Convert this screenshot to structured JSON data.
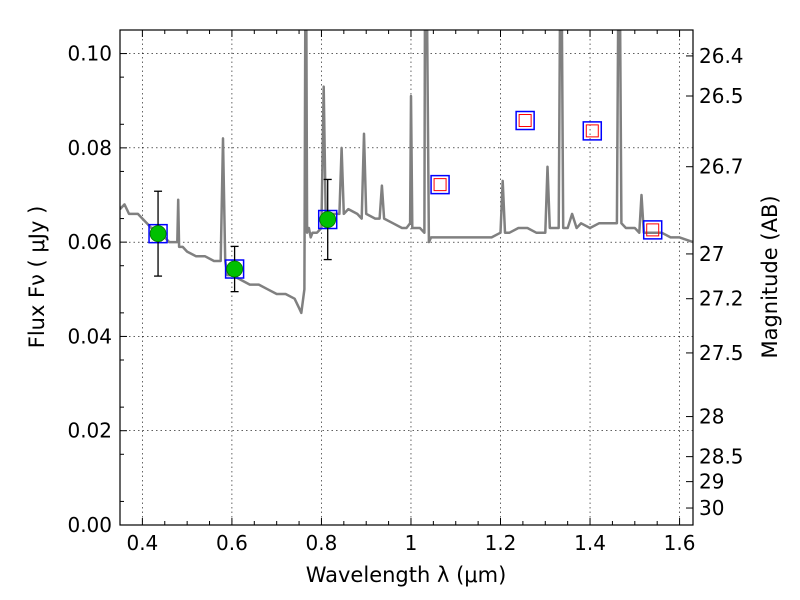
{
  "chart_data": {
    "type": "line",
    "title": "",
    "xlabel": "Wavelength  λ (μm)",
    "ylabel": "Flux  Fν  ( μJy )",
    "ylabel_right": "Magnitude (AB)",
    "xlim": [
      0.35,
      1.63
    ],
    "ylim": [
      0.0,
      0.105
    ],
    "grid": true,
    "x_ticks": [
      0.4,
      0.6,
      0.8,
      1.0,
      1.2,
      1.4,
      1.6
    ],
    "x_tick_labels": [
      "0.4",
      "0.6",
      "0.8",
      "1",
      "1.2",
      "1.4",
      "1.6"
    ],
    "y_ticks": [
      0.0,
      0.02,
      0.04,
      0.06,
      0.08,
      0.1
    ],
    "y_tick_labels": [
      "0.00",
      "0.02",
      "0.04",
      "0.06",
      "0.08",
      "0.10"
    ],
    "right_ticks": [
      {
        "label": "26.4",
        "flux": 0.0995
      },
      {
        "label": "26.5",
        "flux": 0.091
      },
      {
        "label": "26.7",
        "flux": 0.076
      },
      {
        "label": "27",
        "flux": 0.0575
      },
      {
        "label": "27.2",
        "flux": 0.048
      },
      {
        "label": "27.5",
        "flux": 0.0365
      },
      {
        "label": "28",
        "flux": 0.023
      },
      {
        "label": "28.5",
        "flux": 0.0145
      },
      {
        "label": "29",
        "flux": 0.0092
      },
      {
        "label": "30",
        "flux": 0.0036
      }
    ],
    "series": [
      {
        "kind": "model-spectrum",
        "color": "#808080",
        "x": [
          0.35,
          0.36,
          0.37,
          0.38,
          0.39,
          0.4,
          0.41,
          0.42,
          0.43,
          0.44,
          0.45,
          0.46,
          0.47,
          0.478,
          0.48,
          0.482,
          0.49,
          0.5,
          0.52,
          0.54,
          0.56,
          0.575,
          0.58,
          0.585,
          0.59,
          0.6,
          0.62,
          0.64,
          0.66,
          0.68,
          0.7,
          0.72,
          0.74,
          0.75,
          0.755,
          0.762,
          0.765,
          0.768,
          0.77,
          0.772,
          0.776,
          0.78,
          0.79,
          0.8,
          0.805,
          0.81,
          0.815,
          0.82,
          0.83,
          0.84,
          0.845,
          0.85,
          0.86,
          0.88,
          0.89,
          0.895,
          0.9,
          0.92,
          0.93,
          0.935,
          0.94,
          0.96,
          0.98,
          0.99,
          0.998,
          1.0,
          1.003,
          1.01,
          1.02,
          1.03,
          1.032,
          1.035,
          1.04,
          1.045,
          1.06,
          1.08,
          1.1,
          1.12,
          1.14,
          1.16,
          1.18,
          1.2,
          1.205,
          1.21,
          1.22,
          1.24,
          1.26,
          1.28,
          1.3,
          1.3,
          1.305,
          1.31,
          1.32,
          1.33,
          1.335,
          1.34,
          1.35,
          1.36,
          1.37,
          1.38,
          1.4,
          1.42,
          1.44,
          1.46,
          1.465,
          1.47,
          1.48,
          1.5,
          1.51,
          1.515,
          1.52,
          1.54,
          1.56,
          1.58,
          1.6,
          1.63
        ],
        "y": [
          0.067,
          0.068,
          0.066,
          0.066,
          0.066,
          0.065,
          0.064,
          0.063,
          0.063,
          0.062,
          0.061,
          0.06,
          0.06,
          0.06,
          0.069,
          0.059,
          0.059,
          0.058,
          0.057,
          0.057,
          0.056,
          0.056,
          0.082,
          0.056,
          0.053,
          0.053,
          0.052,
          0.051,
          0.051,
          0.05,
          0.049,
          0.049,
          0.048,
          0.046,
          0.045,
          0.05,
          0.14,
          0.062,
          0.063,
          0.063,
          0.061,
          0.062,
          0.062,
          0.063,
          0.093,
          0.063,
          0.065,
          0.066,
          0.066,
          0.066,
          0.08,
          0.066,
          0.067,
          0.066,
          0.065,
          0.083,
          0.066,
          0.065,
          0.065,
          0.072,
          0.065,
          0.064,
          0.063,
          0.063,
          0.064,
          0.091,
          0.063,
          0.063,
          0.063,
          0.062,
          0.14,
          0.12,
          0.06,
          0.061,
          0.061,
          0.061,
          0.061,
          0.061,
          0.061,
          0.061,
          0.061,
          0.062,
          0.073,
          0.062,
          0.062,
          0.063,
          0.063,
          0.062,
          0.062,
          0.062,
          0.076,
          0.063,
          0.063,
          0.063,
          0.14,
          0.063,
          0.063,
          0.066,
          0.063,
          0.064,
          0.063,
          0.064,
          0.064,
          0.064,
          0.14,
          0.064,
          0.063,
          0.063,
          0.062,
          0.07,
          0.062,
          0.062,
          0.062,
          0.061,
          0.061,
          0.06
        ]
      },
      {
        "kind": "observed-photometry",
        "color": "#00c000",
        "x": [
          0.435,
          0.606,
          0.814
        ],
        "y": [
          0.0618,
          0.0543,
          0.0648
        ],
        "yerr": [
          0.009,
          0.0048,
          0.0085
        ]
      },
      {
        "kind": "model-photometry",
        "color": "#0000ff",
        "x": [
          0.435,
          0.606,
          0.814,
          1.065,
          1.255,
          1.405,
          1.54
        ],
        "y": [
          0.0618,
          0.0543,
          0.0648,
          0.0722,
          0.0858,
          0.0836,
          0.0626
        ]
      },
      {
        "kind": "upper-limits",
        "color": "#ff0000",
        "x": [
          1.065,
          1.255,
          1.405,
          1.54
        ],
        "y": [
          0.0722,
          0.0858,
          0.0836,
          0.0626
        ]
      }
    ]
  }
}
